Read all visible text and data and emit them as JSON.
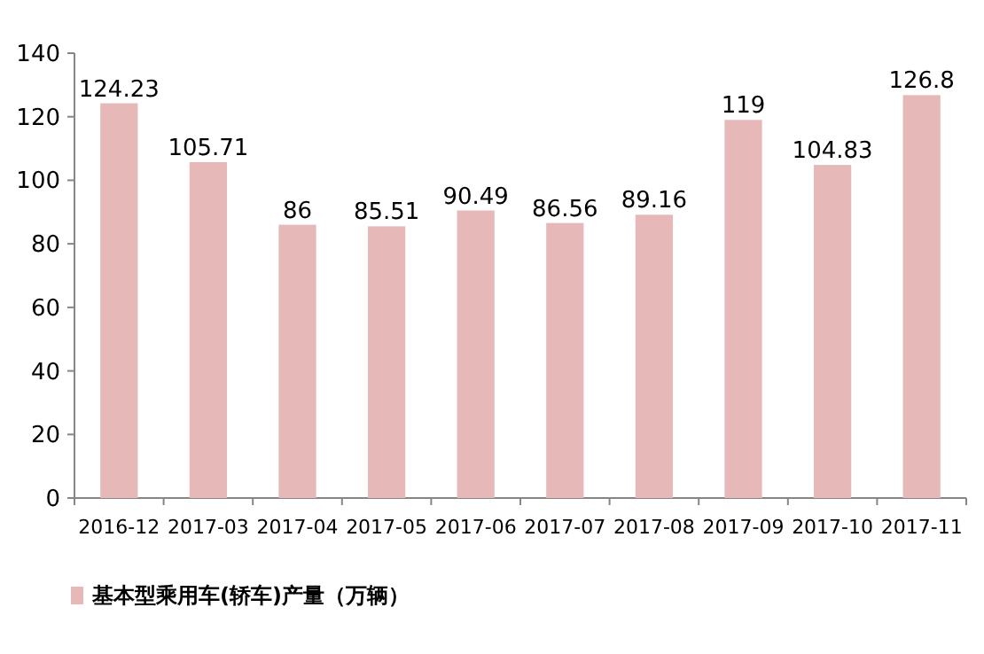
{
  "chart_data": {
    "type": "bar",
    "categories": [
      "2016-12",
      "2017-03",
      "2017-04",
      "2017-05",
      "2017-06",
      "2017-07",
      "2017-08",
      "2017-09",
      "2017-10",
      "2017-11"
    ],
    "series": [
      {
        "name": "基本型乘用车(轿车)产量（万辆）",
        "color": "#e6b9b8",
        "values": [
          124.23,
          105.71,
          86,
          85.51,
          90.49,
          86.56,
          89.16,
          119,
          104.83,
          126.8
        ]
      }
    ],
    "ylim": [
      0,
      140
    ],
    "yticks": [
      0,
      20,
      40,
      60,
      80,
      100,
      120,
      140
    ],
    "data_labels": true,
    "legend": "bottom left",
    "grid": false
  }
}
